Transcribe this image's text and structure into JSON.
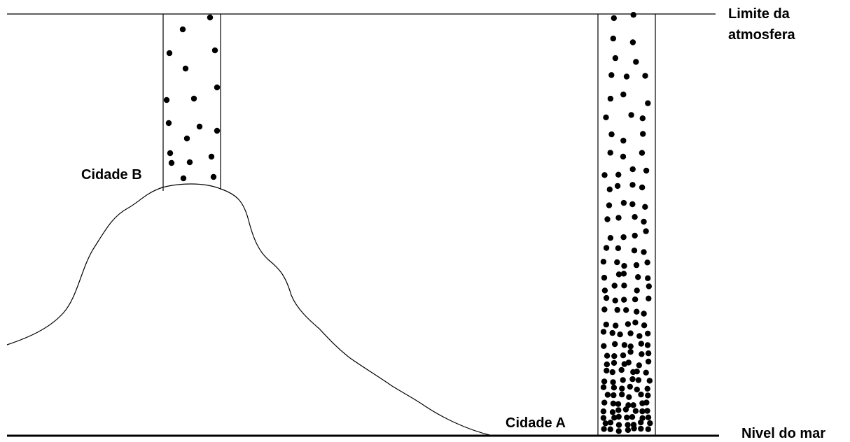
{
  "labels": {
    "atmosphere_limit_line1": "Limite da",
    "atmosphere_limit_line2": "atmosfera",
    "city_b": "Cidade B",
    "city_a": "Cidade A",
    "sea_level": "Nivel do mar"
  },
  "colors": {
    "ink": "#000000",
    "background": "#ffffff"
  }
}
